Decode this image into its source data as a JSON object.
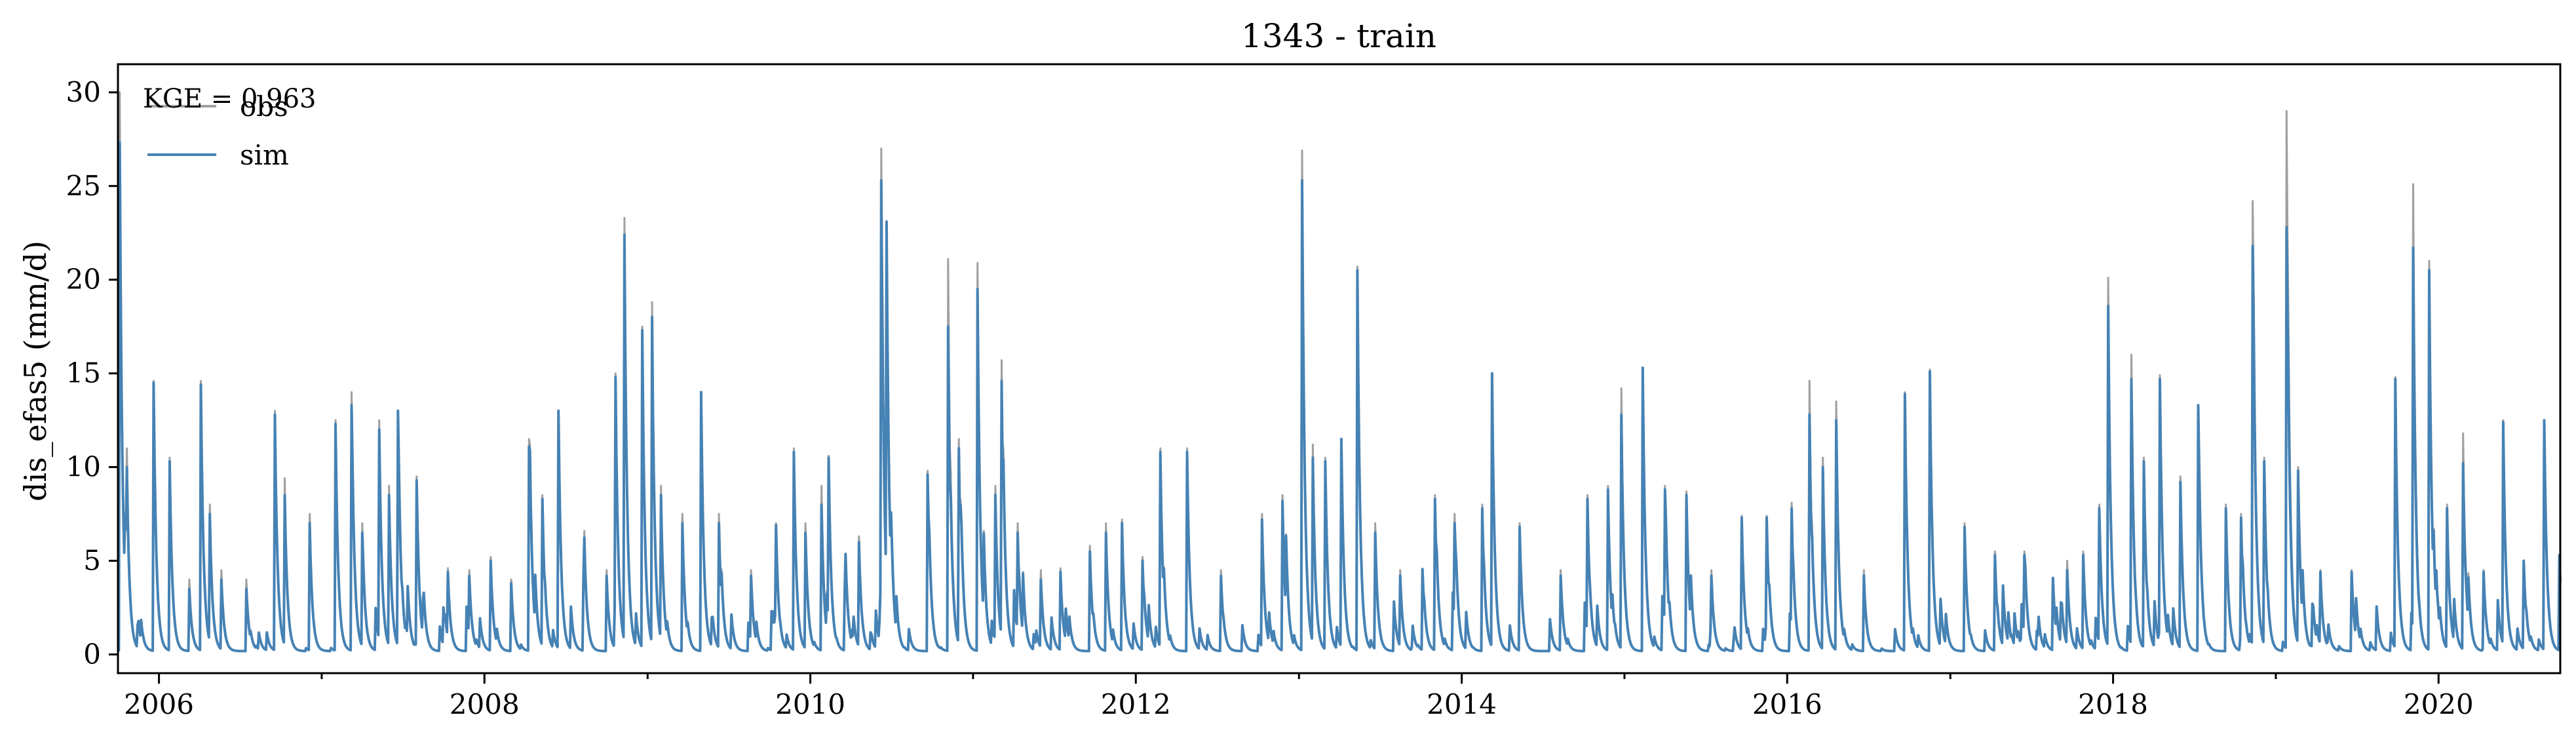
{
  "chart_data": {
    "type": "line",
    "title": "1343 - train",
    "xlabel": "",
    "ylabel": "dis_efas5 (mm/d)",
    "xlim": [
      "2005-10-01",
      "2020-09-30"
    ],
    "ylim": [
      -1,
      31.5
    ],
    "x_ticks": [
      "2006",
      "2008",
      "2010",
      "2012",
      "2014",
      "2016",
      "2018",
      "2020"
    ],
    "y_ticks": [
      "0",
      "5",
      "10",
      "15",
      "20",
      "25",
      "30"
    ],
    "grid": false,
    "legend_position": "top-left",
    "annotation": "KGE = 0.963",
    "series": [
      {
        "name": "obs",
        "color": "#a0a0a0",
        "peaks": [
          [
            "2005-10-05",
            30.0
          ],
          [
            "2005-10-20",
            11.0
          ],
          [
            "2005-12-20",
            14.6
          ],
          [
            "2006-01-25",
            10.5
          ],
          [
            "2006-03-10",
            4.0
          ],
          [
            "2006-04-05",
            14.6
          ],
          [
            "2006-04-25",
            8.0
          ],
          [
            "2006-05-20",
            4.5
          ],
          [
            "2006-07-15",
            4.0
          ],
          [
            "2006-09-18",
            13.0
          ],
          [
            "2006-10-10",
            9.4
          ],
          [
            "2006-12-05",
            7.5
          ],
          [
            "2007-02-01",
            12.5
          ],
          [
            "2007-03-08",
            14.0
          ],
          [
            "2007-04-02",
            7.0
          ],
          [
            "2007-05-10",
            12.5
          ],
          [
            "2007-06-01",
            9.0
          ],
          [
            "2007-06-20",
            13.0
          ],
          [
            "2007-08-01",
            9.5
          ],
          [
            "2007-10-10",
            4.6
          ],
          [
            "2007-11-28",
            4.5
          ],
          [
            "2008-01-15",
            5.2
          ],
          [
            "2008-03-01",
            4.0
          ],
          [
            "2008-04-10",
            11.5
          ],
          [
            "2008-05-10",
            8.5
          ],
          [
            "2008-06-15",
            13.0
          ],
          [
            "2008-08-10",
            4.5
          ],
          [
            "2008-10-01",
            4.5
          ],
          [
            "2008-10-20",
            15.0
          ],
          [
            "2008-11-10",
            23.3
          ],
          [
            "2008-12-20",
            17.5
          ],
          [
            "2009-01-10",
            18.8
          ],
          [
            "2009-01-30",
            9.0
          ],
          [
            "2009-03-20",
            7.5
          ],
          [
            "2009-05-01",
            14.0
          ],
          [
            "2009-06-10",
            7.5
          ],
          [
            "2009-08-20",
            4.5
          ],
          [
            "2009-10-15",
            7.0
          ],
          [
            "2009-11-25",
            11.0
          ],
          [
            "2009-12-20",
            7.0
          ],
          [
            "2010-01-25",
            9.0
          ],
          [
            "2010-02-10",
            10.6
          ],
          [
            "2010-04-20",
            6.3
          ],
          [
            "2010-06-08",
            27.0
          ],
          [
            "2010-06-20",
            23.0
          ],
          [
            "2010-09-20",
            9.8
          ],
          [
            "2010-11-05",
            21.1
          ],
          [
            "2010-11-30",
            11.5
          ],
          [
            "2011-01-10",
            20.9
          ],
          [
            "2011-02-20",
            9.0
          ],
          [
            "2011-03-05",
            15.7
          ],
          [
            "2011-04-10",
            7.0
          ],
          [
            "2011-06-01",
            4.5
          ],
          [
            "2011-07-15",
            4.6
          ],
          [
            "2011-09-20",
            5.8
          ],
          [
            "2011-10-25",
            7.0
          ],
          [
            "2011-12-01",
            7.2
          ],
          [
            "2012-01-15",
            5.2
          ],
          [
            "2012-02-25",
            11.0
          ],
          [
            "2012-04-25",
            11.0
          ],
          [
            "2012-07-10",
            4.5
          ],
          [
            "2012-10-10",
            7.5
          ],
          [
            "2012-11-25",
            8.5
          ],
          [
            "2013-01-08",
            26.9
          ],
          [
            "2013-02-01",
            11.2
          ],
          [
            "2013-03-01",
            10.5
          ],
          [
            "2013-04-05",
            11.5
          ],
          [
            "2013-05-12",
            20.7
          ],
          [
            "2013-06-20",
            7.0
          ],
          [
            "2013-08-15",
            4.5
          ],
          [
            "2013-11-01",
            8.5
          ],
          [
            "2013-12-15",
            7.5
          ],
          [
            "2014-02-15",
            8.0
          ],
          [
            "2014-03-10",
            15.0
          ],
          [
            "2014-05-10",
            7.0
          ],
          [
            "2014-08-10",
            4.5
          ],
          [
            "2014-10-10",
            8.5
          ],
          [
            "2014-11-25",
            9.0
          ],
          [
            "2014-12-25",
            14.2
          ],
          [
            "2015-02-10",
            15.3
          ],
          [
            "2015-04-01",
            9.0
          ],
          [
            "2015-05-20",
            8.7
          ],
          [
            "2015-07-15",
            4.5
          ],
          [
            "2015-09-20",
            7.4
          ],
          [
            "2015-11-15",
            7.4
          ],
          [
            "2016-01-10",
            8.1
          ],
          [
            "2016-02-20",
            14.6
          ],
          [
            "2016-03-20",
            10.5
          ],
          [
            "2016-04-20",
            13.5
          ],
          [
            "2016-06-20",
            4.5
          ],
          [
            "2016-09-20",
            14.0
          ],
          [
            "2016-11-15",
            15.2
          ],
          [
            "2017-02-01",
            7.0
          ],
          [
            "2017-04-10",
            5.5
          ],
          [
            "2017-06-15",
            5.5
          ],
          [
            "2017-09-20",
            5.0
          ],
          [
            "2017-10-25",
            5.5
          ],
          [
            "2017-12-01",
            8.0
          ],
          [
            "2017-12-20",
            20.1
          ],
          [
            "2018-02-10",
            16.0
          ],
          [
            "2018-03-10",
            10.5
          ],
          [
            "2018-04-15",
            14.9
          ],
          [
            "2018-06-01",
            9.5
          ],
          [
            "2018-07-10",
            13.3
          ],
          [
            "2018-09-10",
            8.0
          ],
          [
            "2018-10-15",
            7.5
          ],
          [
            "2018-11-10",
            24.2
          ],
          [
            "2018-12-05",
            10.5
          ],
          [
            "2019-01-25",
            29.0
          ],
          [
            "2019-02-20",
            10.0
          ],
          [
            "2019-04-10",
            4.5
          ],
          [
            "2019-06-20",
            4.5
          ],
          [
            "2019-09-25",
            14.8
          ],
          [
            "2019-11-05",
            25.1
          ],
          [
            "2019-12-10",
            21.0
          ],
          [
            "2020-01-20",
            8.0
          ],
          [
            "2020-02-25",
            11.8
          ],
          [
            "2020-04-10",
            4.5
          ],
          [
            "2020-05-25",
            12.5
          ],
          [
            "2020-07-10",
            5.0
          ],
          [
            "2020-08-25",
            12.5
          ],
          [
            "2020-09-28",
            5.3
          ]
        ]
      },
      {
        "name": "sim",
        "color": "#4682b4",
        "peaks": [
          [
            "2005-10-05",
            27.3
          ],
          [
            "2005-10-20",
            10.0
          ],
          [
            "2005-12-20",
            14.5
          ],
          [
            "2006-01-25",
            10.3
          ],
          [
            "2006-03-10",
            3.5
          ],
          [
            "2006-04-05",
            14.4
          ],
          [
            "2006-04-25",
            7.5
          ],
          [
            "2006-05-20",
            4.0
          ],
          [
            "2006-07-15",
            3.5
          ],
          [
            "2006-09-18",
            12.8
          ],
          [
            "2006-10-10",
            8.5
          ],
          [
            "2006-12-05",
            7.0
          ],
          [
            "2007-02-01",
            12.3
          ],
          [
            "2007-03-08",
            13.3
          ],
          [
            "2007-04-02",
            6.5
          ],
          [
            "2007-05-10",
            12.0
          ],
          [
            "2007-06-01",
            8.5
          ],
          [
            "2007-06-20",
            13.0
          ],
          [
            "2007-08-01",
            9.3
          ],
          [
            "2007-10-10",
            4.4
          ],
          [
            "2007-11-28",
            4.2
          ],
          [
            "2008-01-15",
            5.0
          ],
          [
            "2008-03-01",
            3.8
          ],
          [
            "2008-04-10",
            11.1
          ],
          [
            "2008-05-10",
            8.3
          ],
          [
            "2008-06-15",
            13.0
          ],
          [
            "2008-08-10",
            4.0
          ],
          [
            "2008-10-01",
            4.2
          ],
          [
            "2008-10-20",
            14.8
          ],
          [
            "2008-11-10",
            22.4
          ],
          [
            "2008-12-20",
            17.3
          ],
          [
            "2009-01-10",
            18.0
          ],
          [
            "2009-01-30",
            8.5
          ],
          [
            "2009-03-20",
            7.0
          ],
          [
            "2009-05-01",
            14.0
          ],
          [
            "2009-06-10",
            7.0
          ],
          [
            "2009-08-20",
            4.2
          ],
          [
            "2009-10-15",
            6.9
          ],
          [
            "2009-11-25",
            10.8
          ],
          [
            "2009-12-20",
            6.5
          ],
          [
            "2010-01-25",
            8.0
          ],
          [
            "2010-02-10",
            10.5
          ],
          [
            "2010-04-20",
            6.0
          ],
          [
            "2010-06-08",
            25.3
          ],
          [
            "2010-06-20",
            23.1
          ],
          [
            "2010-09-20",
            9.6
          ],
          [
            "2010-11-05",
            17.5
          ],
          [
            "2010-11-30",
            11.0
          ],
          [
            "2011-01-10",
            19.5
          ],
          [
            "2011-02-20",
            8.5
          ],
          [
            "2011-03-05",
            14.6
          ],
          [
            "2011-04-10",
            6.5
          ],
          [
            "2011-06-01",
            4.0
          ],
          [
            "2011-07-15",
            4.4
          ],
          [
            "2011-09-20",
            5.5
          ],
          [
            "2011-10-25",
            6.5
          ],
          [
            "2011-12-01",
            7.0
          ],
          [
            "2012-01-15",
            5.0
          ],
          [
            "2012-02-25",
            10.8
          ],
          [
            "2012-04-25",
            10.8
          ],
          [
            "2012-07-10",
            4.2
          ],
          [
            "2012-10-10",
            7.2
          ],
          [
            "2012-11-25",
            8.2
          ],
          [
            "2013-01-08",
            25.3
          ],
          [
            "2013-02-01",
            10.5
          ],
          [
            "2013-03-01",
            10.3
          ],
          [
            "2013-04-05",
            11.5
          ],
          [
            "2013-05-12",
            20.5
          ],
          [
            "2013-06-20",
            6.5
          ],
          [
            "2013-08-15",
            4.2
          ],
          [
            "2013-11-01",
            8.3
          ],
          [
            "2013-12-15",
            7.0
          ],
          [
            "2014-02-15",
            7.8
          ],
          [
            "2014-03-10",
            15.0
          ],
          [
            "2014-05-10",
            6.8
          ],
          [
            "2014-08-10",
            4.2
          ],
          [
            "2014-10-10",
            8.3
          ],
          [
            "2014-11-25",
            8.8
          ],
          [
            "2014-12-25",
            12.8
          ],
          [
            "2015-02-10",
            15.3
          ],
          [
            "2015-04-01",
            8.8
          ],
          [
            "2015-05-20",
            8.5
          ],
          [
            "2015-07-15",
            4.2
          ],
          [
            "2015-09-20",
            7.3
          ],
          [
            "2015-11-15",
            7.3
          ],
          [
            "2016-01-10",
            7.8
          ],
          [
            "2016-02-20",
            12.8
          ],
          [
            "2016-03-20",
            10.0
          ],
          [
            "2016-04-20",
            12.5
          ],
          [
            "2016-06-20",
            4.2
          ],
          [
            "2016-09-20",
            13.9
          ],
          [
            "2016-11-15",
            15.1
          ],
          [
            "2017-02-01",
            6.8
          ],
          [
            "2017-04-10",
            5.3
          ],
          [
            "2017-06-15",
            5.3
          ],
          [
            "2017-09-20",
            4.5
          ],
          [
            "2017-10-25",
            5.3
          ],
          [
            "2017-12-01",
            7.8
          ],
          [
            "2017-12-20",
            18.6
          ],
          [
            "2018-02-10",
            14.7
          ],
          [
            "2018-03-10",
            10.3
          ],
          [
            "2018-04-15",
            14.7
          ],
          [
            "2018-06-01",
            9.2
          ],
          [
            "2018-07-10",
            13.3
          ],
          [
            "2018-09-10",
            7.8
          ],
          [
            "2018-10-15",
            7.3
          ],
          [
            "2018-11-10",
            21.8
          ],
          [
            "2018-12-05",
            10.3
          ],
          [
            "2019-01-25",
            22.8
          ],
          [
            "2019-02-20",
            9.8
          ],
          [
            "2019-04-10",
            4.4
          ],
          [
            "2019-06-20",
            4.4
          ],
          [
            "2019-09-25",
            14.7
          ],
          [
            "2019-11-05",
            21.7
          ],
          [
            "2019-12-10",
            20.5
          ],
          [
            "2020-01-20",
            7.8
          ],
          [
            "2020-02-25",
            10.2
          ],
          [
            "2020-04-10",
            4.4
          ],
          [
            "2020-05-25",
            12.4
          ],
          [
            "2020-07-10",
            5.0
          ],
          [
            "2020-08-25",
            12.5
          ],
          [
            "2020-09-28",
            5.3
          ]
        ]
      }
    ]
  }
}
